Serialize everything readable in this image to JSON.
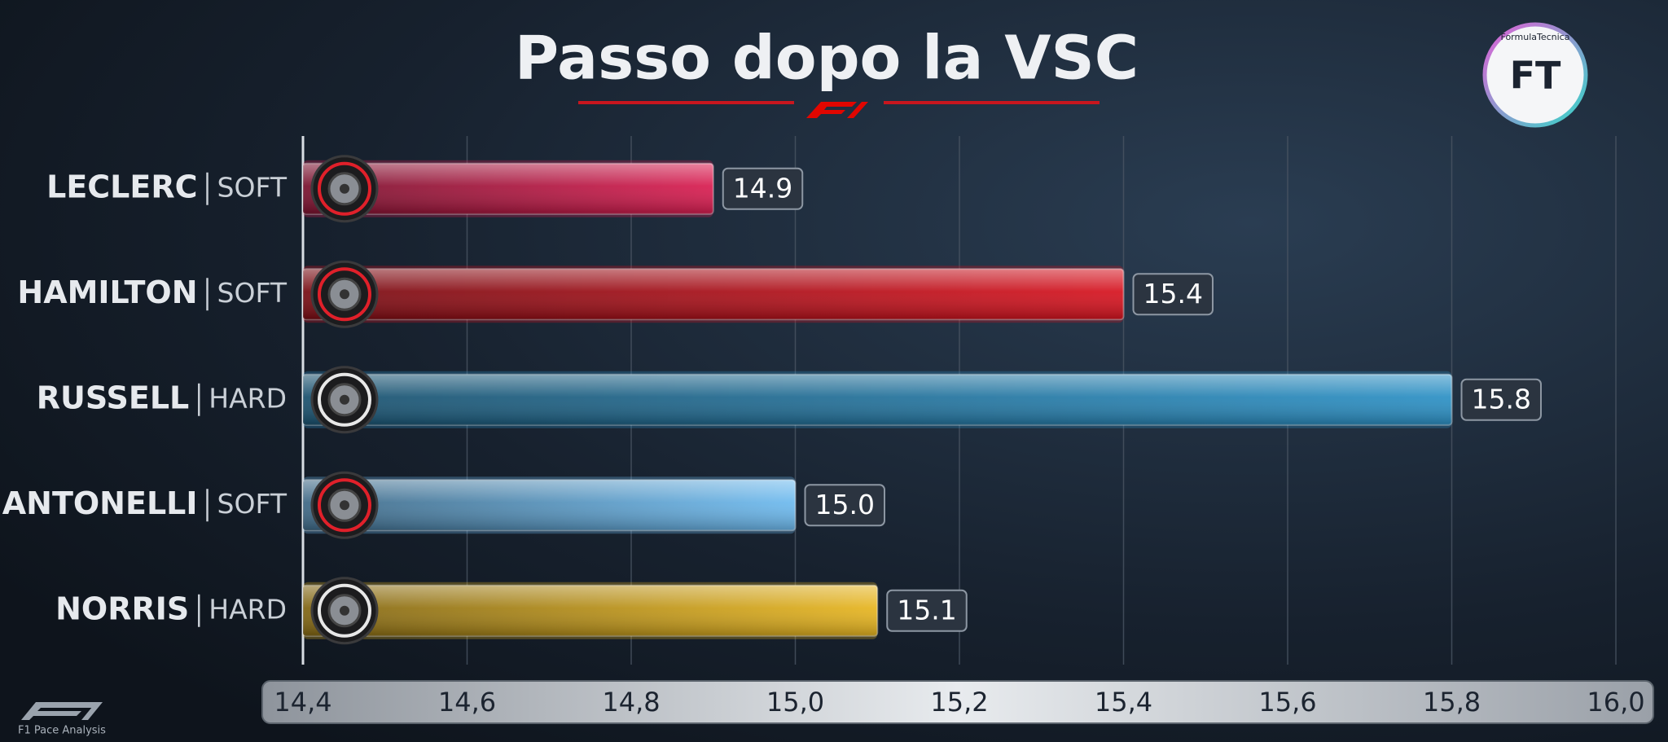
{
  "chart_data": {
    "type": "bar",
    "orientation": "horizontal",
    "title": "Passo dopo la VSC",
    "categories": [
      "LECLERC",
      "HAMILTON",
      "RUSSELL",
      "ANTONELLI",
      "NORRIS"
    ],
    "compounds": [
      "SOFT",
      "SOFT",
      "HARD",
      "SOFT",
      "HARD"
    ],
    "values": [
      14.9,
      15.4,
      15.8,
      15.0,
      15.1
    ],
    "value_labels": [
      "14.9",
      "15.4",
      "15.8",
      "15.0",
      "15.1"
    ],
    "colors": [
      "#d81b4f",
      "#d6121e",
      "#2a8fc4",
      "#6cb9ee",
      "#e6b41e"
    ],
    "xlim": [
      14.4,
      16.0
    ],
    "xticks": [
      {
        "value": 14.4,
        "label": "14,4"
      },
      {
        "value": 14.6,
        "label": "14,6"
      },
      {
        "value": 14.8,
        "label": "14,8"
      },
      {
        "value": 15.0,
        "label": "15,0"
      },
      {
        "value": 15.2,
        "label": "15,2"
      },
      {
        "value": 15.4,
        "label": "15,4"
      },
      {
        "value": 15.6,
        "label": "15,6"
      },
      {
        "value": 15.8,
        "label": "15,8"
      },
      {
        "value": 16.0,
        "label": "16,0"
      }
    ],
    "grid": true
  },
  "logo": {
    "mark": "FT",
    "name": "FormulaTecnica"
  },
  "footer": "F1 Pace Analysis"
}
